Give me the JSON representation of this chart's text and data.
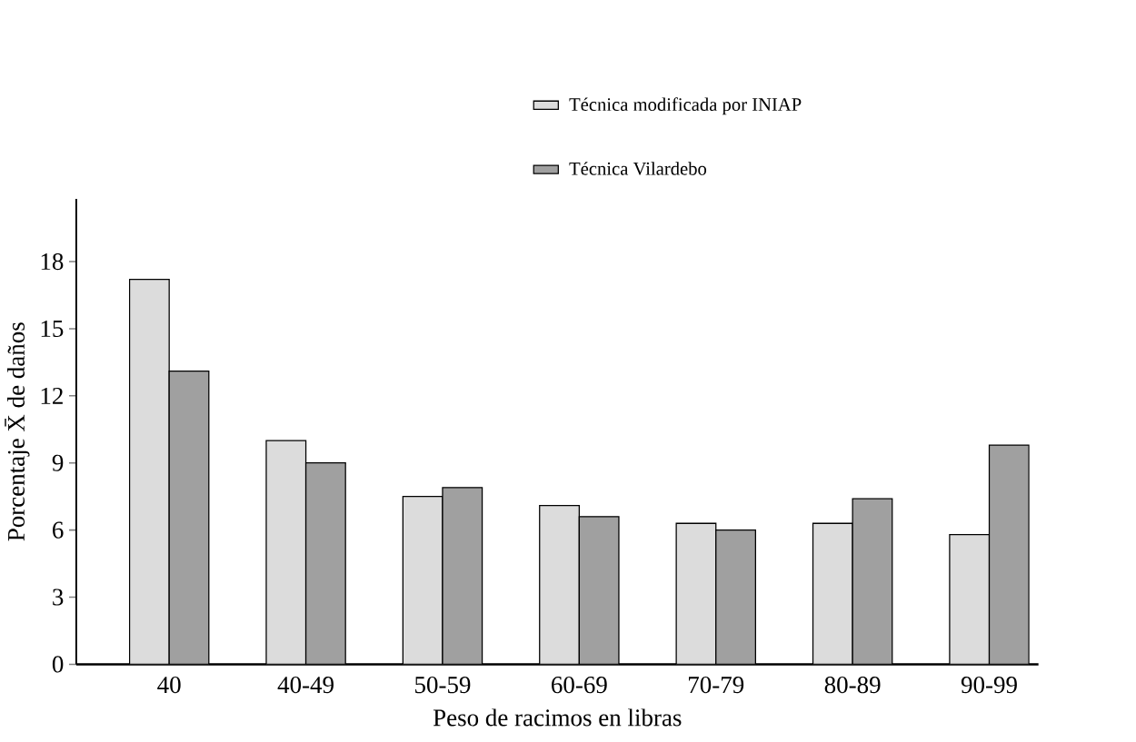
{
  "chart_data": {
    "type": "bar",
    "xlabel": "Peso de racimos en libras",
    "ylabel": "Porcentaje X̄ de daños",
    "categories": [
      "40",
      "40-49",
      "50-59",
      "60-69",
      "70-79",
      "80-89",
      "90-99"
    ],
    "series": [
      {
        "name": "Técnica modificada por INIAP",
        "color": "#dcdcdc",
        "values": [
          17.2,
          10.0,
          7.5,
          7.1,
          6.3,
          6.3,
          5.8
        ]
      },
      {
        "name": "Técnica Vilardebo",
        "color": "#a0a0a0",
        "values": [
          13.1,
          9.0,
          7.9,
          6.6,
          6.0,
          7.4,
          9.8
        ]
      }
    ],
    "ylim": [
      0,
      20.8
    ],
    "yticks": [
      0,
      3,
      6,
      9,
      12,
      15,
      18
    ],
    "legend": "top right",
    "grid": false
  }
}
